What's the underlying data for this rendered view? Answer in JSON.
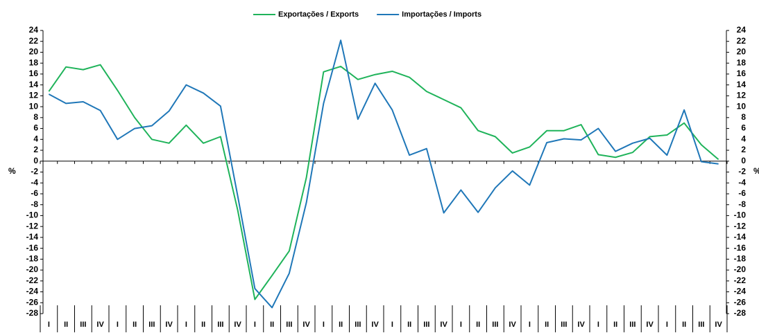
{
  "chart_data": {
    "type": "line",
    "y_label": "%",
    "categories": [
      "I",
      "II",
      "III",
      "IV",
      "I",
      "II",
      "III",
      "IV",
      "I",
      "II",
      "III",
      "IV",
      "I",
      "II",
      "III",
      "IV",
      "I",
      "II",
      "III",
      "IV",
      "I",
      "II",
      "III",
      "IV",
      "I",
      "II",
      "III",
      "IV",
      "I",
      "II",
      "III",
      "IV",
      "I",
      "II",
      "III",
      "IV",
      "I",
      "II",
      "III",
      "IV"
    ],
    "series": [
      {
        "name": "Exportações / Exports",
        "color": "#1fb35a",
        "values": [
          12.8,
          17.3,
          16.8,
          17.7,
          13.0,
          8.0,
          4.0,
          3.3,
          6.6,
          3.3,
          4.5,
          -9.0,
          -25.4,
          -21.0,
          -16.5,
          -3.0,
          16.4,
          17.4,
          15.0,
          15.9,
          16.5,
          15.4,
          12.8,
          11.3,
          9.8,
          5.6,
          4.5,
          1.5,
          2.6,
          5.6,
          5.6,
          6.7,
          1.2,
          0.7,
          1.6,
          4.5,
          4.8,
          7.0,
          3.0,
          0.3
        ]
      },
      {
        "name": "Importações / Imports",
        "color": "#1f77b8",
        "values": [
          12.3,
          10.6,
          10.9,
          9.3,
          4.0,
          6.0,
          6.5,
          9.2,
          14.0,
          12.5,
          10.1,
          -6.4,
          -23.4,
          -26.9,
          -20.6,
          -7.6,
          10.6,
          22.2,
          7.7,
          14.3,
          9.4,
          1.1,
          2.3,
          -9.5,
          -5.3,
          -9.4,
          -4.9,
          -1.8,
          -4.4,
          3.4,
          4.1,
          3.9,
          6.0,
          1.8,
          3.3,
          4.2,
          1.1,
          9.4,
          -0.1,
          -0.5
        ]
      }
    ],
    "ylim": [
      -28,
      24
    ],
    "yticks": [
      -28,
      -26,
      -24,
      -22,
      -20,
      -18,
      -16,
      -14,
      -12,
      -10,
      -8,
      -6,
      -4,
      -2,
      0,
      2,
      4,
      6,
      8,
      10,
      12,
      14,
      16,
      18,
      20,
      22,
      24
    ],
    "legend": "top"
  }
}
